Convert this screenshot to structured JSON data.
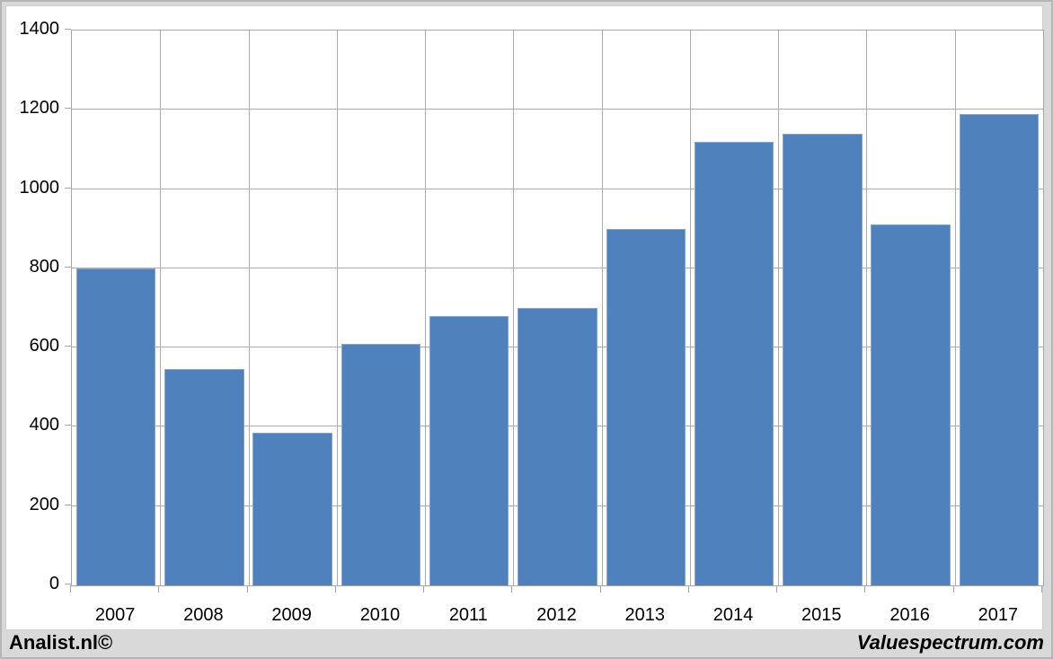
{
  "branding": {
    "left": "Analist.nl©",
    "right": "Valuespectrum.com"
  },
  "colors": {
    "bar_fill": "#4F81BD",
    "bar_edge": "#84A7D4",
    "gridline": "#ABABAB",
    "axis": "#A6A6A6",
    "frame_background": "#D9D9D9",
    "plot_background": "#FFFFFF",
    "text": "#000000"
  },
  "chart_data": {
    "type": "bar",
    "title": "",
    "xlabel": "",
    "ylabel": "",
    "categories": [
      "2007",
      "2008",
      "2009",
      "2010",
      "2011",
      "2012",
      "2013",
      "2014",
      "2015",
      "2016",
      "2017"
    ],
    "values": [
      800,
      545,
      385,
      610,
      680,
      700,
      900,
      1120,
      1140,
      910,
      1190
    ],
    "ylim": [
      0,
      1400
    ],
    "ytick_step": 200,
    "ytick_labels": [
      "0",
      "200",
      "400",
      "600",
      "800",
      "1000",
      "1200",
      "1400"
    ],
    "grid": true,
    "legend": false,
    "bar_width_ratio": 0.9
  }
}
